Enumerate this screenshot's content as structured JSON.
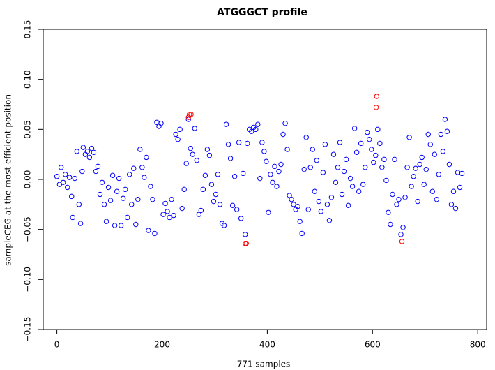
{
  "chart_data": {
    "type": "scatter",
    "title": "ATGGGCT profile",
    "x_label": "771 samples",
    "y_label": "sampleCEG at the most efficient position",
    "xlim": [
      -26,
      817
    ],
    "ylim": [
      -0.15,
      0.15
    ],
    "xticks": [
      0,
      200,
      400,
      600,
      800
    ],
    "yticks": [
      {
        "value": -0.15,
        "label": "−0.15"
      },
      {
        "value": -0.1,
        "label": "−0.10"
      },
      {
        "value": -0.05,
        "label": "−0.05"
      },
      {
        "value": 0,
        "label": "0.00"
      },
      {
        "value": 0.05,
        "label": "0.05"
      },
      {
        "value": 0.1,
        "label": "0.10"
      },
      {
        "value": 0.15,
        "label": "0.15"
      }
    ],
    "series": [
      {
        "color": "#0000ff",
        "x": [
          0,
          5,
          8,
          12,
          16,
          20,
          24,
          28,
          30,
          34,
          38,
          42,
          45,
          48,
          50,
          54,
          58,
          62,
          66,
          70,
          74,
          78,
          82,
          86,
          90,
          94,
          98,
          102,
          106,
          110,
          114,
          118,
          122,
          126,
          130,
          134,
          138,
          142,
          146,
          150,
          154,
          158,
          162,
          166,
          170,
          174,
          178,
          182,
          186,
          190,
          194,
          198,
          202,
          206,
          210,
          214,
          218,
          222,
          226,
          230,
          234,
          238,
          242,
          246,
          250,
          254,
          258,
          262,
          266,
          270,
          274,
          278,
          282,
          286,
          290,
          294,
          298,
          302,
          306,
          310,
          314,
          318,
          322,
          326,
          330,
          334,
          338,
          342,
          346,
          350,
          354,
          358,
          362,
          366,
          370,
          374,
          378,
          382,
          386,
          390,
          394,
          398,
          402,
          406,
          410,
          414,
          418,
          422,
          426,
          430,
          434,
          438,
          442,
          446,
          450,
          454,
          458,
          462,
          466,
          470,
          474,
          478,
          482,
          486,
          490,
          494,
          498,
          502,
          506,
          510,
          514,
          518,
          522,
          526,
          530,
          534,
          538,
          542,
          546,
          550,
          554,
          558,
          562,
          566,
          570,
          574,
          578,
          582,
          586,
          590,
          594,
          598,
          602,
          606,
          610,
          614,
          618,
          622,
          626,
          630,
          634,
          638,
          642,
          646,
          650,
          654,
          658,
          662,
          666,
          670,
          674,
          678,
          682,
          686,
          690,
          694,
          698,
          702,
          706,
          710,
          714,
          718,
          722,
          726,
          730,
          734,
          738,
          742,
          746,
          750,
          754,
          758,
          762,
          766,
          770
        ],
        "values": [
          0.003,
          -0.005,
          0.012,
          -0.003,
          0.005,
          -0.008,
          0.002,
          -0.017,
          -0.038,
          0.001,
          0.028,
          -0.025,
          -0.044,
          0.008,
          0.032,
          0.025,
          0.028,
          0.022,
          0.031,
          0.027,
          0.008,
          0.013,
          -0.015,
          -0.003,
          -0.025,
          -0.042,
          -0.008,
          -0.021,
          0.004,
          -0.046,
          -0.012,
          0.001,
          -0.046,
          -0.019,
          -0.01,
          -0.038,
          0.005,
          -0.025,
          0.011,
          -0.045,
          -0.02,
          0.03,
          0.012,
          0.002,
          0.022,
          -0.051,
          -0.007,
          -0.02,
          -0.054,
          0.057,
          0.053,
          0.056,
          -0.035,
          -0.024,
          -0.032,
          -0.038,
          -0.02,
          -0.036,
          0.045,
          0.04,
          0.05,
          -0.029,
          -0.01,
          0.016,
          0.06,
          0.031,
          0.025,
          0.051,
          0.019,
          -0.035,
          -0.031,
          -0.01,
          0.004,
          0.03,
          0.024,
          -0.005,
          -0.022,
          -0.015,
          0.005,
          -0.025,
          -0.044,
          -0.046,
          0.055,
          0.035,
          0.021,
          -0.026,
          0.003,
          -0.03,
          0.037,
          -0.039,
          0.006,
          -0.055,
          0.036,
          0.05,
          0.048,
          0.052,
          0.05,
          0.055,
          0.001,
          0.037,
          0.028,
          0.018,
          -0.033,
          0.005,
          -0.003,
          0.013,
          -0.007,
          0.008,
          0.015,
          0.045,
          0.056,
          0.03,
          -0.016,
          -0.02,
          -0.025,
          -0.03,
          -0.027,
          -0.042,
          -0.054,
          0.01,
          0.042,
          -0.03,
          0.012,
          0.03,
          -0.012,
          0.019,
          -0.022,
          -0.032,
          0.007,
          0.035,
          -0.025,
          -0.041,
          -0.018,
          0.025,
          -0.003,
          0.012,
          0.037,
          -0.015,
          0.008,
          0.02,
          -0.026,
          0.001,
          -0.007,
          0.051,
          0.027,
          -0.012,
          0.036,
          -0.005,
          0.012,
          0.047,
          0.04,
          0.03,
          0.017,
          0.024,
          0.05,
          0.036,
          0.012,
          0.02,
          -0.001,
          -0.033,
          -0.045,
          -0.015,
          0.02,
          -0.025,
          -0.02,
          -0.055,
          -0.048,
          -0.018,
          0.012,
          0.042,
          -0.007,
          0.003,
          0.011,
          -0.022,
          0.015,
          0.022,
          -0.005,
          0.01,
          0.045,
          0.035,
          -0.012,
          0.025,
          -0.02,
          0.005,
          0.045,
          0.028,
          0.06,
          0.048,
          0.015,
          -0.025,
          -0.012,
          -0.029,
          0.007,
          -0.008,
          0.006
        ]
      },
      {
        "color": "#ff0000",
        "x": [
          250,
          252,
          255,
          358,
          360,
          607,
          608,
          656
        ],
        "values": [
          0.062,
          0.065,
          0.065,
          -0.064,
          -0.064,
          0.072,
          0.083,
          -0.062
        ]
      }
    ]
  }
}
